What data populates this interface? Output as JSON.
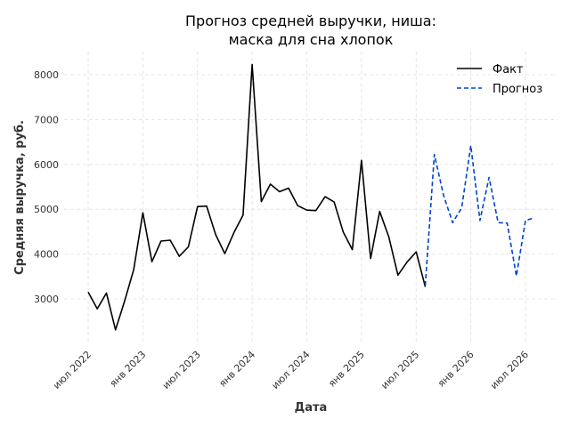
{
  "chart_data": {
    "type": "line",
    "title_lines": [
      "Прогноз средней выручки, ниша:",
      "маска для сна хлопок"
    ],
    "xlabel": "Дата",
    "ylabel": "Средняя выручка, руб.",
    "ylim": [
      2000,
      8500
    ],
    "y_ticks": [
      3000,
      4000,
      5000,
      6000,
      7000,
      8000
    ],
    "x_ticks": [
      {
        "date": "2022-07",
        "label": "июл 2022"
      },
      {
        "date": "2023-01",
        "label": "янв 2023"
      },
      {
        "date": "2023-07",
        "label": "июл 2023"
      },
      {
        "date": "2024-01",
        "label": "янв 2024"
      },
      {
        "date": "2024-07",
        "label": "июл 2024"
      },
      {
        "date": "2025-01",
        "label": "янв 2025"
      },
      {
        "date": "2025-07",
        "label": "июл 2025"
      },
      {
        "date": "2026-01",
        "label": "янв 2026"
      },
      {
        "date": "2026-07",
        "label": "июл 2026"
      }
    ],
    "grid": true,
    "legend_position": "top-right",
    "series": [
      {
        "name": "Факт",
        "color": "#000000",
        "style": "solid",
        "x": [
          "2022-07",
          "2022-08",
          "2022-09",
          "2022-10",
          "2022-11",
          "2022-12",
          "2023-01",
          "2023-02",
          "2023-03",
          "2023-04",
          "2023-05",
          "2023-06",
          "2023-07",
          "2023-08",
          "2023-09",
          "2023-10",
          "2023-11",
          "2023-12",
          "2024-01",
          "2024-02",
          "2024-03",
          "2024-04",
          "2024-05",
          "2024-06",
          "2024-07",
          "2024-08",
          "2024-09",
          "2024-10",
          "2024-11",
          "2024-12",
          "2025-01",
          "2025-02",
          "2025-03",
          "2025-04",
          "2025-05",
          "2025-06",
          "2025-07",
          "2025-08"
        ],
        "y": [
          3150,
          2780,
          3130,
          2310,
          2950,
          3650,
          4920,
          3830,
          4290,
          4310,
          3950,
          4160,
          5060,
          5070,
          4430,
          4010,
          4480,
          4870,
          8230,
          5170,
          5560,
          5390,
          5470,
          5080,
          4980,
          4970,
          5280,
          5160,
          4490,
          4100,
          6090,
          3900,
          4950,
          4380,
          3530,
          3820,
          4050,
          3270
        ]
      },
      {
        "name": "Прогноз",
        "color": "#0044cc",
        "style": "dashed",
        "x": [
          "2025-08",
          "2025-09",
          "2025-10",
          "2025-11",
          "2025-12",
          "2026-01",
          "2026-02",
          "2026-03",
          "2026-04",
          "2026-05",
          "2026-06",
          "2026-07",
          "2026-08"
        ],
        "y": [
          3300,
          6220,
          5320,
          4700,
          5030,
          6420,
          4750,
          5710,
          4700,
          4690,
          3510,
          4750,
          4810
        ]
      }
    ]
  }
}
